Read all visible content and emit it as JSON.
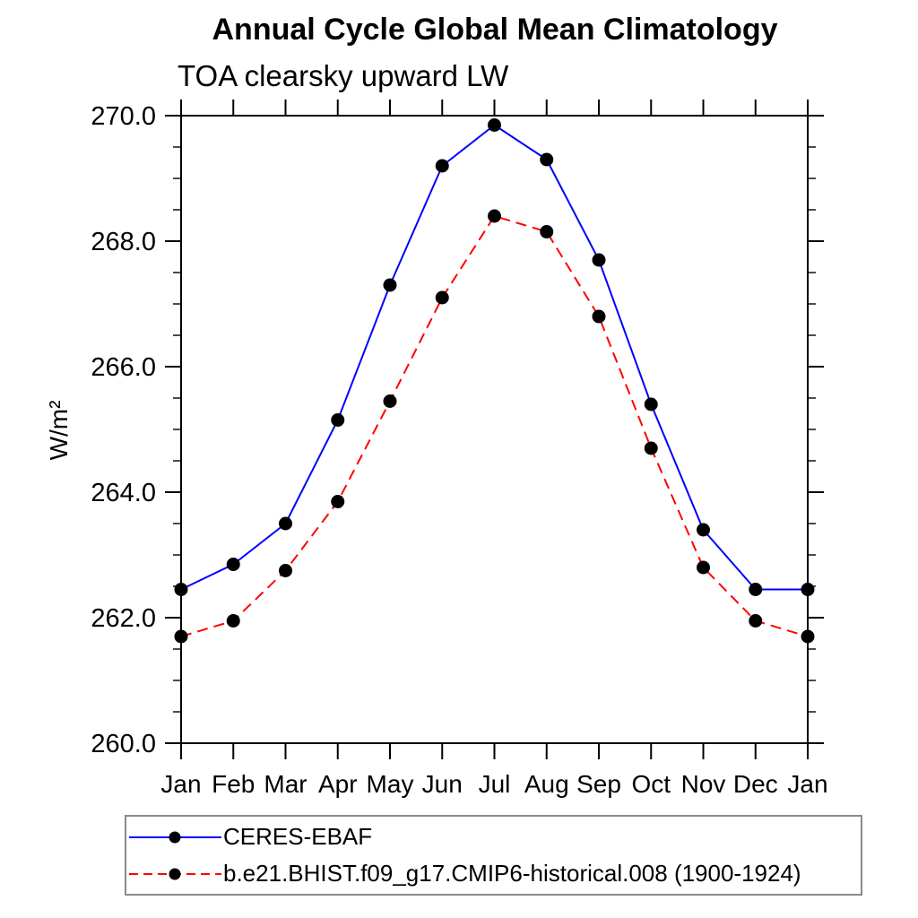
{
  "chart_data": {
    "type": "line",
    "title": "Annual Cycle Global Mean Climatology",
    "subtitle": "TOA clearsky upward LW",
    "ylabel": "W/m²",
    "xlabel": "",
    "categories": [
      "Jan",
      "Feb",
      "Mar",
      "Apr",
      "May",
      "Jun",
      "Jul",
      "Aug",
      "Sep",
      "Oct",
      "Nov",
      "Dec",
      "Jan"
    ],
    "series": [
      {
        "name": "CERES-EBAF",
        "color": "#0000ff",
        "line_style": "solid",
        "marker": "black-dot",
        "values": [
          262.45,
          262.85,
          263.5,
          265.15,
          267.3,
          269.2,
          269.85,
          269.3,
          267.7,
          265.4,
          263.4,
          262.45,
          262.45
        ]
      },
      {
        "name": "b.e21.BHIST.f09_g17.CMIP6-historical.008 (1900-1924)",
        "color": "#ff0000",
        "line_style": "dashed",
        "marker": "black-dot",
        "values": [
          261.7,
          261.95,
          262.75,
          263.85,
          265.45,
          267.1,
          268.4,
          268.15,
          266.8,
          264.7,
          262.8,
          261.95,
          261.7
        ]
      }
    ],
    "ylim": [
      260.0,
      270.0
    ],
    "y_major_step": 2.0,
    "y_minor_step": 0.5,
    "y_tick_labels": [
      "260.0",
      "262.0",
      "264.0",
      "266.0",
      "268.0",
      "270.0"
    ],
    "grid": false,
    "legend_position": "bottom-left-box",
    "marker_color": "#000000",
    "axis_color": "#000000"
  }
}
